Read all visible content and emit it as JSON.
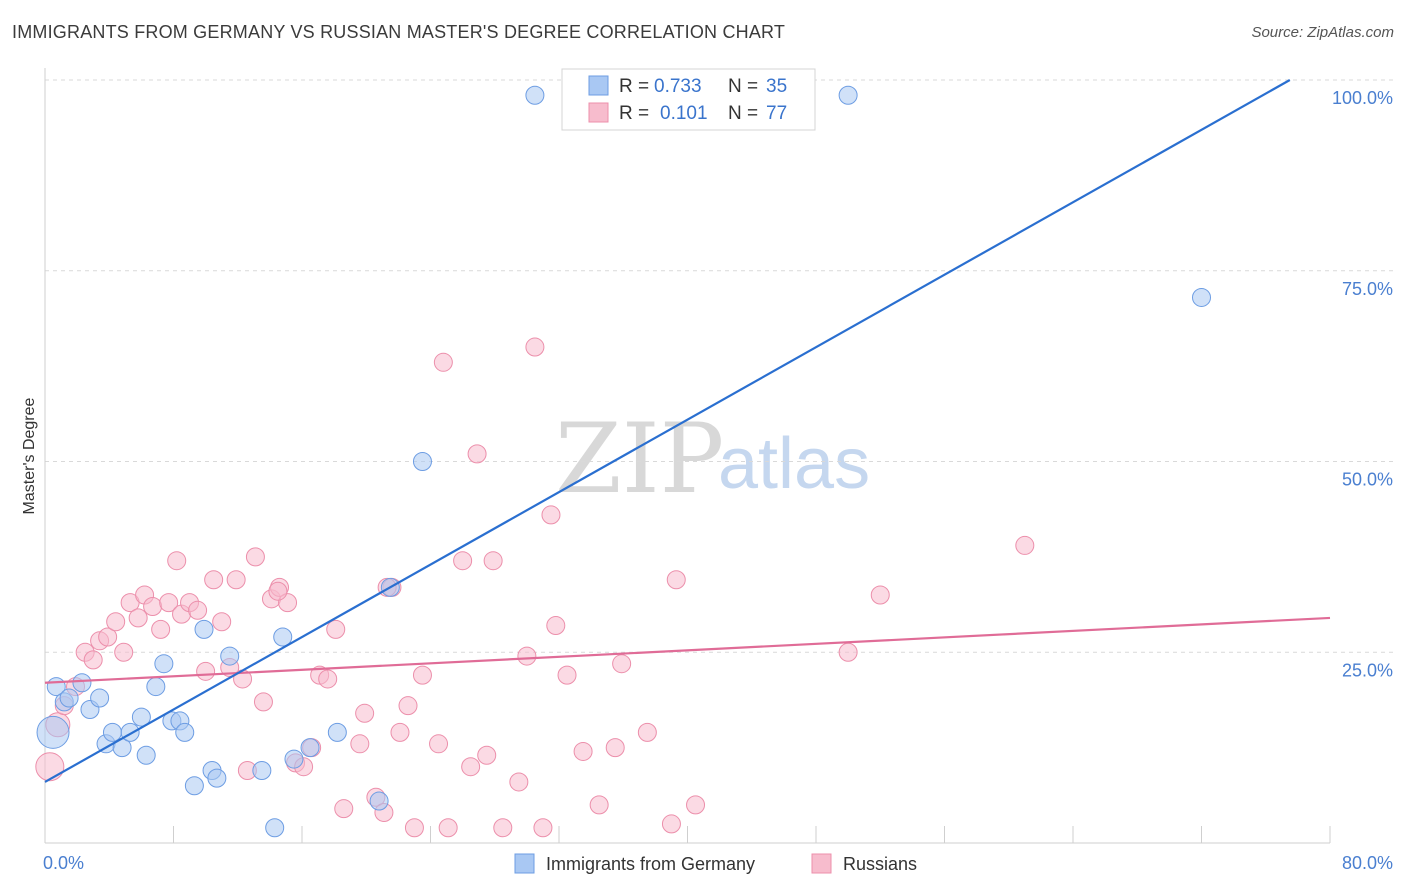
{
  "header": {
    "title": "IMMIGRANTS FROM GERMANY VS RUSSIAN MASTER'S DEGREE CORRELATION CHART",
    "source": "Source: ZipAtlas.com"
  },
  "watermark": {
    "part1": "ZIP",
    "part2": "atlas"
  },
  "legend": {
    "r_label": "R =",
    "n_label": "N =",
    "series": [
      {
        "r": "0.733",
        "n": "35"
      },
      {
        "r": "0.101",
        "n": "77"
      }
    ]
  },
  "colors": {
    "blue_fill": "#a9c8f3",
    "blue_stroke": "#6d9de3",
    "blue_line": "#2a6fd0",
    "pink_fill": "#f7bccd",
    "pink_stroke": "#ec8fab",
    "pink_line": "#e06c97",
    "tick_text": "#4a7fd0",
    "grid": "#d9d9d9"
  },
  "chart_data": {
    "type": "scatter",
    "title": "IMMIGRANTS FROM GERMANY VS RUSSIAN MASTER'S DEGREE CORRELATION CHART",
    "xlabel": "",
    "ylabel": "Master's Degree",
    "xlim": [
      0,
      80
    ],
    "ylim": [
      0,
      100
    ],
    "x_ticks": [
      "0.0%",
      "80.0%"
    ],
    "y_ticks": [
      {
        "value": 100,
        "label": "100.0%"
      },
      {
        "value": 75,
        "label": "75.0%"
      },
      {
        "value": 50,
        "label": "50.0%"
      },
      {
        "value": 25,
        "label": "25.0%"
      }
    ],
    "series": [
      {
        "name": "Immigrants from Germany",
        "color": "blue",
        "trend": {
          "x0": 0,
          "y0": 8,
          "x1": 77.5,
          "y1": 100
        },
        "points": [
          [
            0.5,
            14.5,
            16
          ],
          [
            0.7,
            20.5,
            9
          ],
          [
            1.2,
            18.5,
            9
          ],
          [
            1.5,
            19,
            9
          ],
          [
            2.3,
            21,
            9
          ],
          [
            2.8,
            17.5,
            9
          ],
          [
            3.4,
            19,
            9
          ],
          [
            3.8,
            13,
            9
          ],
          [
            4.2,
            14.5,
            9
          ],
          [
            4.8,
            12.5,
            9
          ],
          [
            5.3,
            14.5,
            9
          ],
          [
            6.0,
            16.5,
            9
          ],
          [
            6.3,
            11.5,
            9
          ],
          [
            6.9,
            20.5,
            9
          ],
          [
            7.4,
            23.5,
            9
          ],
          [
            7.9,
            16,
            9
          ],
          [
            8.4,
            16,
            9
          ],
          [
            8.7,
            14.5,
            9
          ],
          [
            9.3,
            7.5,
            9
          ],
          [
            9.9,
            28,
            9
          ],
          [
            10.4,
            9.5,
            9
          ],
          [
            10.7,
            8.5,
            9
          ],
          [
            11.5,
            24.5,
            9
          ],
          [
            13.5,
            9.5,
            9
          ],
          [
            14.3,
            2,
            9
          ],
          [
            14.8,
            27,
            9
          ],
          [
            15.5,
            11,
            9
          ],
          [
            16.5,
            12.5,
            9
          ],
          [
            18.2,
            14.5,
            9
          ],
          [
            20.8,
            5.5,
            9
          ],
          [
            21.5,
            33.5,
            9
          ],
          [
            23.5,
            50,
            9
          ],
          [
            30.5,
            98,
            9
          ],
          [
            50.0,
            98,
            9
          ],
          [
            72.0,
            71.5,
            9
          ]
        ]
      },
      {
        "name": "Russians",
        "color": "pink",
        "trend": {
          "x0": 0,
          "y0": 21,
          "x1": 80,
          "y1": 29.5
        },
        "points": [
          [
            0.3,
            10,
            14
          ],
          [
            0.8,
            15.5,
            12
          ],
          [
            1.2,
            18,
            9
          ],
          [
            1.9,
            20.5,
            9
          ],
          [
            2.5,
            25,
            9
          ],
          [
            3.0,
            24,
            9
          ],
          [
            3.4,
            26.5,
            9
          ],
          [
            3.9,
            27,
            9
          ],
          [
            4.4,
            29,
            9
          ],
          [
            4.9,
            25,
            9
          ],
          [
            5.3,
            31.5,
            9
          ],
          [
            5.8,
            29.5,
            9
          ],
          [
            6.2,
            32.5,
            9
          ],
          [
            6.7,
            31,
            9
          ],
          [
            7.2,
            28,
            9
          ],
          [
            7.7,
            31.5,
            9
          ],
          [
            8.2,
            37,
            9
          ],
          [
            8.5,
            30,
            9
          ],
          [
            9.0,
            31.5,
            9
          ],
          [
            9.5,
            30.5,
            9
          ],
          [
            10.0,
            22.5,
            9
          ],
          [
            10.5,
            34.5,
            9
          ],
          [
            11.0,
            29,
            9
          ],
          [
            11.5,
            23,
            9
          ],
          [
            11.9,
            34.5,
            9
          ],
          [
            12.3,
            21.5,
            9
          ],
          [
            12.6,
            9.5,
            9
          ],
          [
            13.1,
            37.5,
            9
          ],
          [
            13.6,
            18.5,
            9
          ],
          [
            14.1,
            32,
            9
          ],
          [
            14.6,
            33.5,
            9
          ],
          [
            15.1,
            31.5,
            9
          ],
          [
            15.6,
            10.5,
            9
          ],
          [
            16.1,
            10,
            9
          ],
          [
            16.6,
            12.5,
            9
          ],
          [
            17.1,
            22,
            9
          ],
          [
            17.6,
            21.5,
            9
          ],
          [
            18.1,
            28,
            9
          ],
          [
            18.6,
            4.5,
            9
          ],
          [
            19.6,
            13,
            9
          ],
          [
            19.9,
            17,
            9
          ],
          [
            20.6,
            6,
            9
          ],
          [
            21.1,
            4,
            9
          ],
          [
            21.6,
            33.5,
            9
          ],
          [
            22.1,
            14.5,
            9
          ],
          [
            22.6,
            18,
            9
          ],
          [
            23.0,
            2,
            9
          ],
          [
            23.5,
            22,
            9
          ],
          [
            24.5,
            13,
            9
          ],
          [
            24.8,
            63,
            9
          ],
          [
            25.1,
            2,
            9
          ],
          [
            26.5,
            10,
            9
          ],
          [
            26.9,
            51,
            9
          ],
          [
            27.5,
            11.5,
            9
          ],
          [
            27.9,
            37,
            9
          ],
          [
            28.5,
            2,
            9
          ],
          [
            29.5,
            8,
            9
          ],
          [
            30.0,
            24.5,
            9
          ],
          [
            30.5,
            65,
            9
          ],
          [
            31.0,
            2,
            9
          ],
          [
            31.5,
            43,
            9
          ],
          [
            31.8,
            28.5,
            9
          ],
          [
            32.5,
            22,
            9
          ],
          [
            33.5,
            12,
            9
          ],
          [
            34.5,
            5,
            9
          ],
          [
            35.5,
            12.5,
            9
          ],
          [
            35.9,
            23.5,
            9
          ],
          [
            37.5,
            14.5,
            9
          ],
          [
            39.0,
            2.5,
            9
          ],
          [
            39.3,
            34.5,
            9
          ],
          [
            40.5,
            5,
            9
          ],
          [
            50.0,
            25,
            9
          ],
          [
            52.0,
            32.5,
            9
          ],
          [
            61.0,
            39,
            9
          ],
          [
            21.3,
            33.5,
            9
          ],
          [
            14.5,
            33,
            9
          ],
          [
            26.0,
            37,
            9
          ]
        ]
      }
    ]
  }
}
